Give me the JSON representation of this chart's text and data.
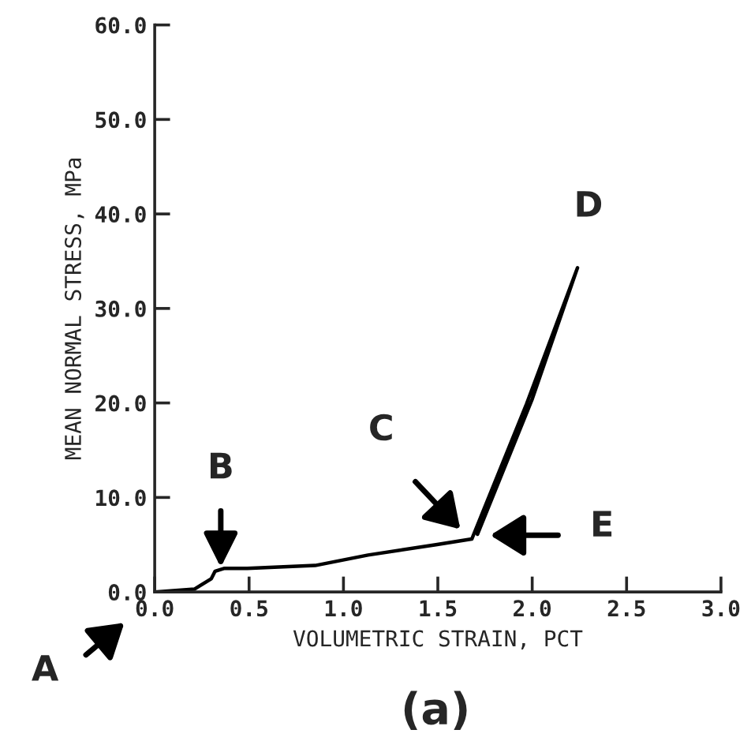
{
  "chart_data": {
    "type": "line",
    "xlabel": "VOLUMETRIC STRAIN, PCT",
    "ylabel": "MEAN NORMAL STRESS, MPa",
    "x": [
      0.0,
      0.21,
      0.3,
      0.32,
      0.37,
      0.49,
      0.85,
      1.13,
      1.49,
      1.68,
      1.97,
      2.24,
      2.0,
      1.71
    ],
    "series": [
      {
        "color": "#000000",
        "values": [
          0.0,
          0.3,
          1.4,
          2.2,
          2.5,
          2.5,
          2.8,
          3.9,
          5.0,
          5.6,
          19.9,
          34.3,
          20.4,
          6.1
        ]
      }
    ],
    "xlim": [
      0,
      3
    ],
    "ylim": [
      0,
      60
    ],
    "xticks": [
      {
        "value": 0,
        "label": "0.0"
      },
      0.5,
      {
        "value": 1,
        "label": "1.0"
      },
      1.5,
      {
        "value": 2,
        "label": "2.0"
      },
      2.5,
      {
        "value": 3,
        "label": "3.0"
      }
    ],
    "yticks": [
      {
        "value": 0,
        "label": "0.0"
      },
      {
        "value": 10,
        "label": "10.0"
      },
      {
        "value": 20,
        "label": "20.0"
      },
      {
        "value": 30,
        "label": "30.0"
      },
      {
        "value": 40,
        "label": "40.0"
      },
      {
        "value": 50,
        "label": "50.0"
      },
      {
        "value": 60,
        "label": "60.0"
      }
    ],
    "grid": false,
    "marker": "none",
    "line_style": "solid",
    "annotations": [
      "A",
      {
        "text": "B",
        "x": 0.35,
        "y": 2.6
      },
      "C",
      {
        "text": "D",
        "x": 2.24,
        "y": 34.3
      },
      "E",
      "(a)"
    ]
  }
}
